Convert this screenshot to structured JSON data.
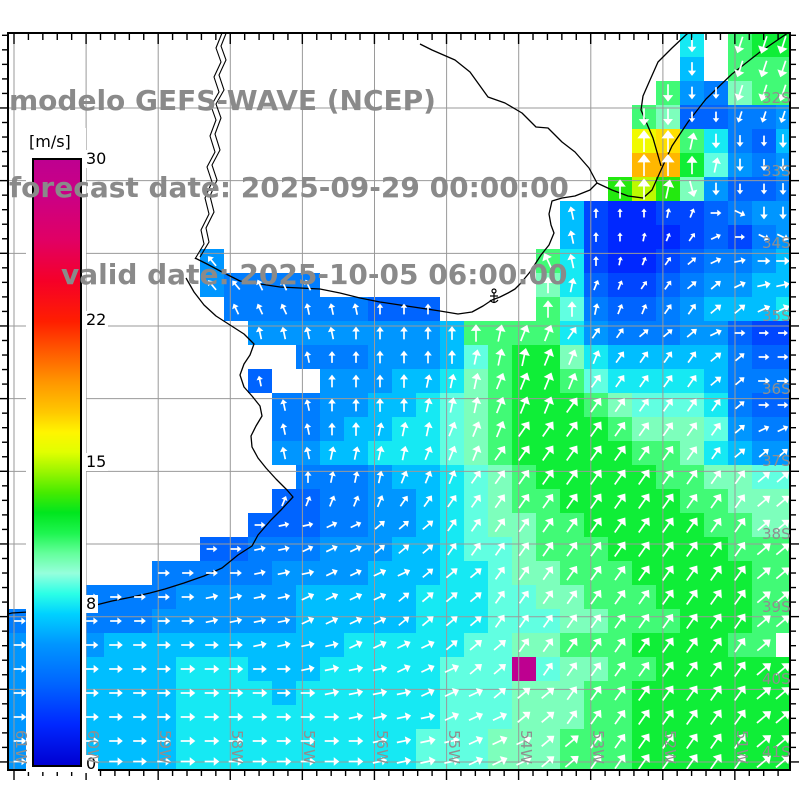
{
  "title": {
    "line1": "modelo GEFS-WAVE (NCEP)",
    "line2": "forecast date: 2025-09-29 00:00:00",
    "line3": "valid date: 2025-10-05 06:00:00"
  },
  "colorbar": {
    "unit": "[m/s]",
    "ticks": [
      "30",
      "22",
      "15",
      "8",
      "0"
    ],
    "tick_values": [
      30,
      22,
      15,
      8,
      0
    ],
    "min": 0,
    "max": 30,
    "stops": [
      [
        0,
        "#0000D2"
      ],
      [
        2,
        "#0028FF"
      ],
      [
        4,
        "#0064FF"
      ],
      [
        6,
        "#0096FF"
      ],
      [
        7.5,
        "#00D2FF"
      ],
      [
        8.5,
        "#2BFFE6"
      ],
      [
        9.5,
        "#96FFDC"
      ],
      [
        10.5,
        "#64FF9B"
      ],
      [
        11.5,
        "#1EF550"
      ],
      [
        12.5,
        "#00E61E"
      ],
      [
        13.5,
        "#46EB00"
      ],
      [
        14.5,
        "#96F500"
      ],
      [
        15.5,
        "#E1FF00"
      ],
      [
        16.5,
        "#FFF500"
      ],
      [
        17.5,
        "#FFC800"
      ],
      [
        19,
        "#FF9600"
      ],
      [
        20.5,
        "#FF5A00"
      ],
      [
        22,
        "#FF1E00"
      ],
      [
        24,
        "#F50028"
      ],
      [
        26,
        "#E10064"
      ],
      [
        28,
        "#CD0082"
      ],
      [
        30,
        "#BE0090"
      ]
    ]
  },
  "axes": {
    "lon": [
      "61W",
      "60W",
      "59W",
      "58W",
      "57W",
      "56W",
      "55W",
      "54W",
      "53W",
      "52W",
      "51W"
    ],
    "lat": [
      "32S",
      "33S",
      "34S",
      "35S",
      "36S",
      "37S",
      "38S",
      "39S",
      "40S",
      "41S"
    ]
  },
  "field": {
    "cell": 24,
    "cols": 33,
    "rows": 31,
    "speed": [
      "............................8.BCC",
      "............................7.BBB",
      "...........................B65ABB",
      "..........................BA44556",
      "..........................GHB8547",
      "..........................IIC9656",
      ".........................DFDA6445",
      ".......................7322334566",
      ".......................7322234356",
      "........6.............B8322345567",
      "........65555.........A8433456677",
      ".........555555444....B9544567778",
      "..........666666667BBBB8655566433",
      "............55566679BCCA877777544",
      "..........4..666778ABCCB988887555",
      "...........55667789ABCCCBA9998544",
      "...........55677889ABCCCCBAAA9655",
      "...........66778889ABCCCCCBBA8766",
      "............55567789ABCCCCCBBAA99",
      "...........445566789ABBCCCCCBBAAA",
      "..........4445566789AABBCCCCCBBAA",
      "........4455566677899ABBBCCCCCBBB",
      "......555556666777889AABBBCCCCCBB",
      "..55555666667777788899AABBBCCCCBB",
      "55555566666677777888999AABBBCCCBB",
      "666677777777778888899AABBBCCCCBB.",
      "666777788877788888999 9AABBCCCCCCB",
      "667777788887888888999AAABBCCCCCCC",
      "667777788888888888999AAABBCCCCCCC",
      "66777778888888888999AAABBBCCCCCCC",
      "66777778888888888999AAABBBCCCCCCC"
    ],
    "dir": [
      "............................o.ppp",
      "............................o.ppp",
      "...........................oooppp",
      "..........................ooooppp",
      "..........................ddeoooo",
      "..........................dddeooo",
      ".........................ddenoooo",
      ".......................cdddefkloo",
      ".......................cddefgikll",
      "........a.............bcdefghijkk",
      "........aabbb.........deffgghhijj",
      ".........bbbcccddd....ddeffgghhii",
      "..........ccccddddddeffggghhhikkk",
      "............cddddddeeefffgggghhkk",
      "..........c..ddddeeeffffggggghhkk",
      "...........ccddddeeefffggggggghkk",
      "...........ccddeeefffggggggggghii",
      "...........cceeeefffgggggggggghhh",
      "............deeefffgggggggggggghh",
      "...........fffffggggggggggggggghh",
      "..........kjjiihhhggggggggggggghh",
      "........kkjjiiihhhggggggggggggghh",
      "......kkkkjjjiiiihhhggggggggggghh",
      "..kkkkkkjjjjiiiihhhhggggggggggghh",
      "kkkkkkkkjjjjiiiihhhhggggggggggghh",
      "kkkkkkkkkkjjjjiiiihhhgggggggggghh",
      "kkkkkkkkkkkkjjjjiiihhhggggggggghh",
      "kkkkkkkkkkkkkjjjjiiihhhgggggggghh",
      "kkkkkkkkkkkkkkjjjjiiihhgggggggghh",
      "kkkkkkkkkkkkkkkjjjjiiihhggggggghh",
      "kkkkkkkkkkkkkkkjjjjiiihhggggggghh"
    ],
    "dir_codes": {
      "a": -40,
      "b": -25,
      "c": -12,
      "d": 0,
      "e": 12,
      "f": 22,
      "g": 35,
      "h": 50,
      "i": 65,
      "j": 78,
      "k": 90,
      "l": 115,
      "m": 145,
      "n": 165,
      "o": 180,
      "p": 198
    }
  }
}
